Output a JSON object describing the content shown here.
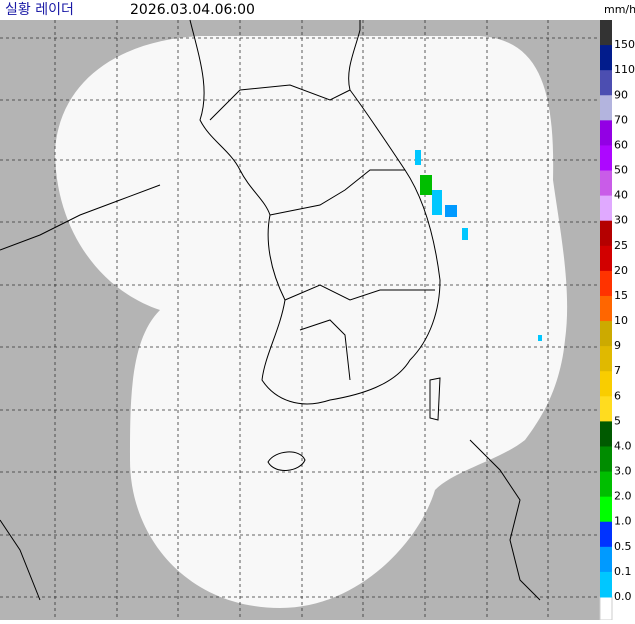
{
  "header": {
    "title": "실황 레이더",
    "time": "2026.03.04.06:00",
    "unit": "mm/h"
  },
  "legend": [
    {
      "label": "150",
      "color": "#333333"
    },
    {
      "label": "110",
      "color": "#021c8c"
    },
    {
      "label": "90",
      "color": "#4c4eb1"
    },
    {
      "label": "70",
      "color": "#b3b4de"
    },
    {
      "label": "60",
      "color": "#9300e4"
    },
    {
      "label": "50",
      "color": "#ad07ff"
    },
    {
      "label": "40",
      "color": "#c95ce8"
    },
    {
      "label": "30",
      "color": "#e0a9ff"
    },
    {
      "label": "25",
      "color": "#b40000"
    },
    {
      "label": "20",
      "color": "#d20000"
    },
    {
      "label": "15",
      "color": "#ff3300"
    },
    {
      "label": "10",
      "color": "#ff6600"
    },
    {
      "label": "9",
      "color": "#ccaa00"
    },
    {
      "label": "7",
      "color": "#e0b900"
    },
    {
      "label": "6",
      "color": "#f9cd00"
    },
    {
      "label": "5",
      "color": "#ffdc1f"
    },
    {
      "label": "4.0",
      "color": "#005a00"
    },
    {
      "label": "3.0",
      "color": "#008c00"
    },
    {
      "label": "2.0",
      "color": "#00be00"
    },
    {
      "label": "1.0",
      "color": "#00ff00"
    },
    {
      "label": "0.5",
      "color": "#0033ff"
    },
    {
      "label": "0.1",
      "color": "#009aff"
    },
    {
      "label": "0.0",
      "color": "#00c7ff"
    }
  ]
}
